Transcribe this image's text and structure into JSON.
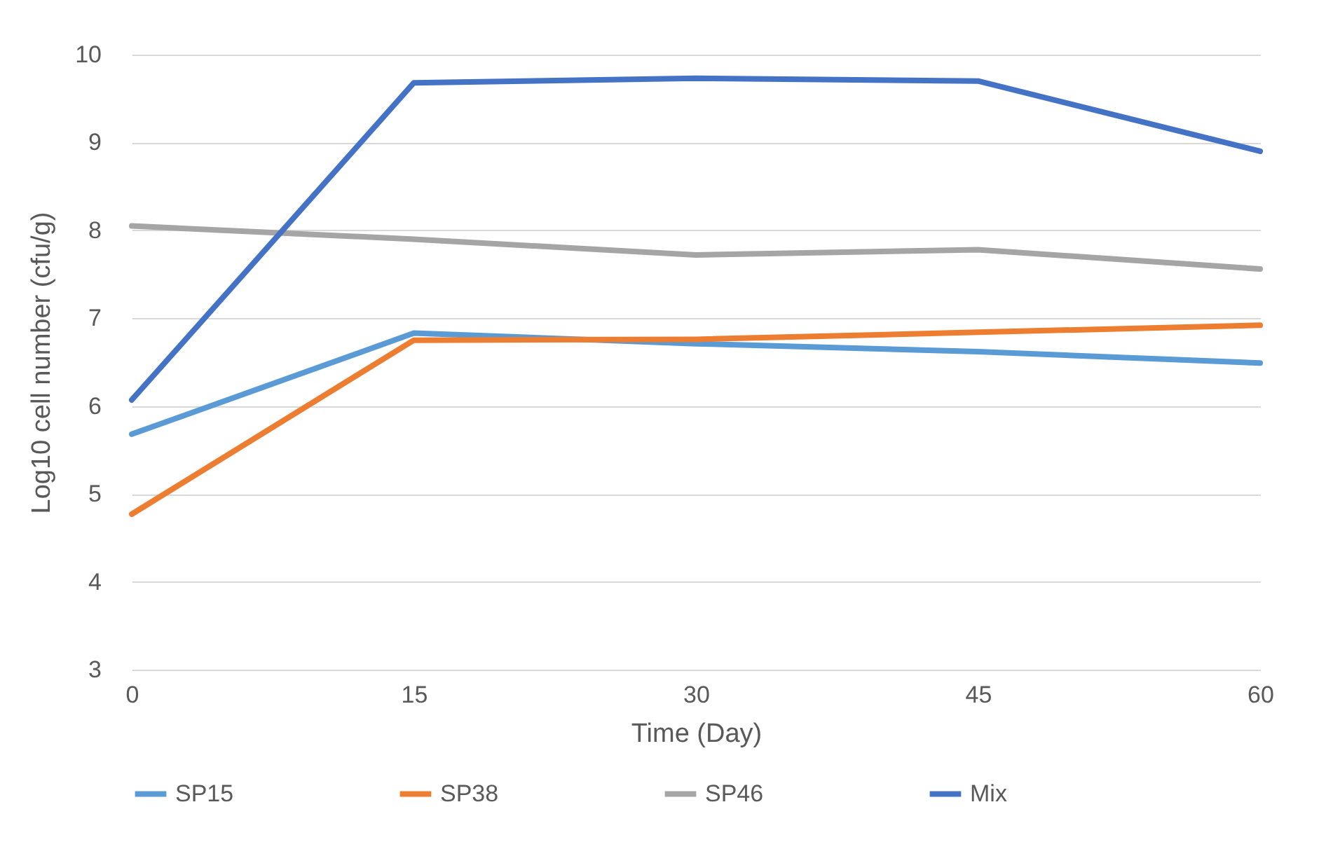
{
  "chart_data": {
    "type": "line",
    "xlabel": "Time (Day)",
    "ylabel": "Log10 cell number (cfu/g)",
    "x": [
      0,
      15,
      30,
      45,
      60
    ],
    "xlim": [
      0,
      60
    ],
    "xticks": [
      0,
      15,
      30,
      45,
      60
    ],
    "ylim": [
      3,
      10
    ],
    "yticks": [
      3,
      4,
      5,
      6,
      7,
      8,
      9,
      10
    ],
    "grid": "y",
    "legend": "bottom",
    "marker": "none",
    "line_style": "solid",
    "series": [
      {
        "name": "SP15",
        "color": "#5b9bd5",
        "values": [
          5.68,
          6.83,
          6.71,
          6.62,
          6.49
        ]
      },
      {
        "name": "SP38",
        "color": "#ed7d31",
        "values": [
          4.77,
          6.75,
          6.76,
          6.84,
          6.92
        ]
      },
      {
        "name": "SP46",
        "color": "#a5a5a5",
        "values": [
          8.05,
          7.9,
          7.72,
          7.78,
          7.56
        ]
      },
      {
        "name": "Mix",
        "color": "#4472c4",
        "values": [
          6.07,
          9.68,
          9.73,
          9.7,
          8.9
        ]
      }
    ]
  }
}
